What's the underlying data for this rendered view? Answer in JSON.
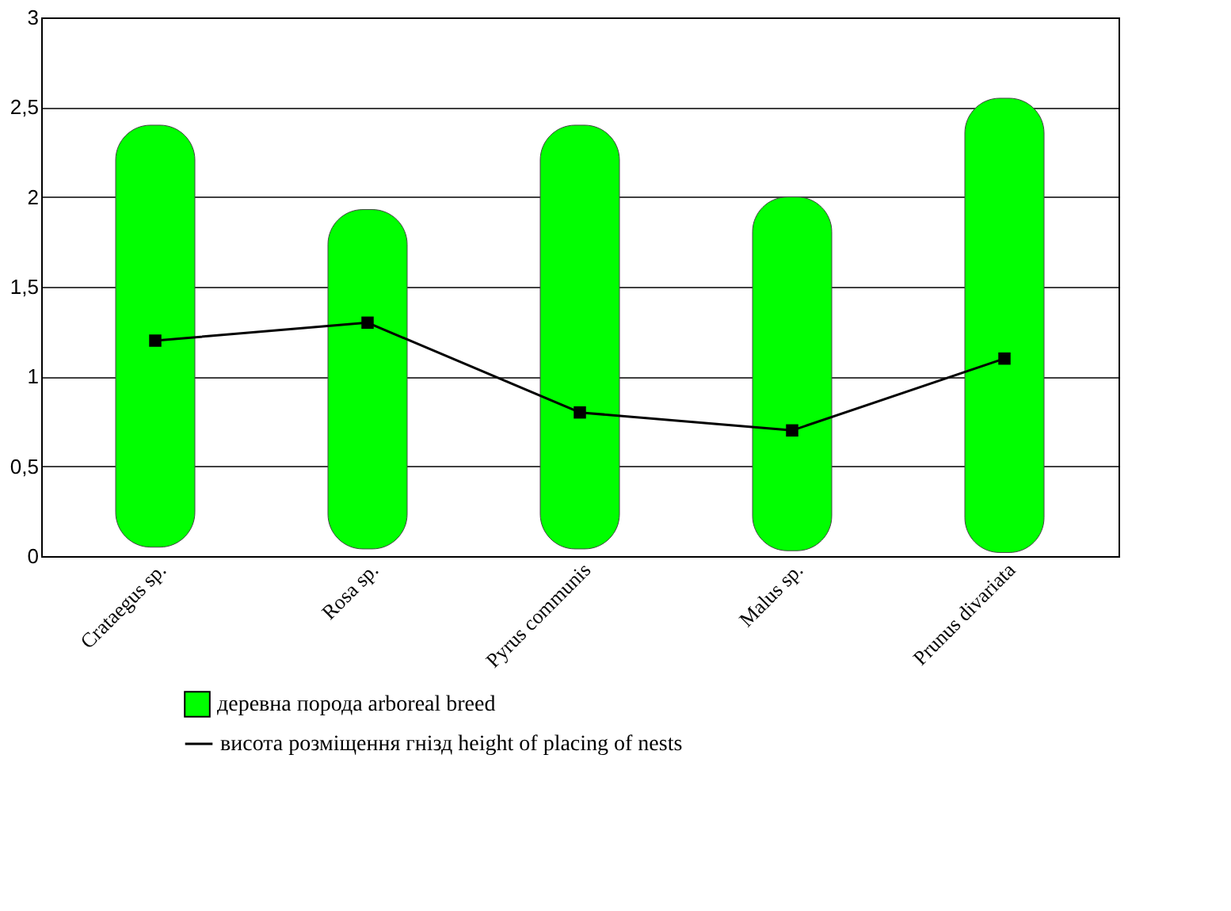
{
  "chart_data": {
    "type": "bar",
    "categories": [
      "Crataegus sp.",
      "Rosa sp.",
      "Pyrus communis",
      "Malus sp.",
      "Prunus divariata"
    ],
    "series": [
      {
        "name": "деревна порода arboreal breed",
        "color": "#00ff00",
        "base": [
          0.05,
          0.04,
          0.04,
          0.03,
          0.02
        ],
        "values": [
          2.35,
          1.89,
          2.36,
          1.97,
          2.53
        ]
      },
      {
        "name": "висота розміщення гнізд          height of placing of nests",
        "type": "line",
        "color": "#000000",
        "marker": "square",
        "values": [
          1.2,
          1.3,
          0.8,
          0.7,
          1.1
        ]
      }
    ],
    "ylim": [
      0,
      3
    ],
    "yticks": [
      0,
      {
        "value": 0.5,
        "label": "0,5"
      },
      1,
      {
        "value": 1.5,
        "label": "1,5"
      },
      2,
      {
        "value": 2.5,
        "label": "2,5"
      },
      3
    ],
    "grid": "y",
    "legend": "bottom"
  }
}
